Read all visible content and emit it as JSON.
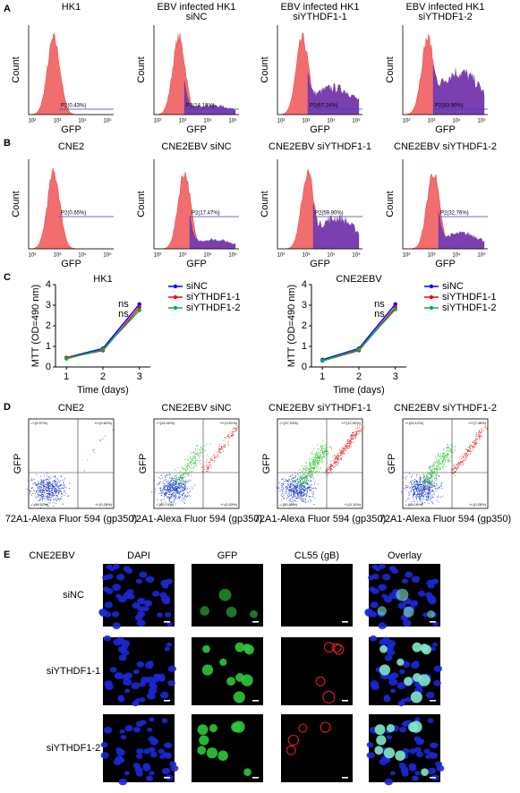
{
  "figure": {
    "panel_labels": [
      "A",
      "B",
      "C",
      "D",
      "E"
    ],
    "hist_axis": {
      "x_label": "GFP",
      "y_label": "Count",
      "x_ticks": [
        "10²",
        "10³",
        "10⁴",
        "10⁵"
      ]
    },
    "A": [
      {
        "title": [
          "HK1"
        ],
        "gate": "P2(0.43%)"
      },
      {
        "title": [
          "EBV infected HK1",
          "siNC"
        ],
        "gate": "P2(14.18%)"
      },
      {
        "title": [
          "EBV infected HK1",
          "siYTHDF1-1"
        ],
        "gate": "P2(67.24%)"
      },
      {
        "title": [
          "EBV infected HK1",
          "siYTHDF1-2"
        ],
        "gate": "P2(83.90%)"
      }
    ],
    "B": [
      {
        "title": [
          "CNE2"
        ],
        "gate": "P2(0.65%)"
      },
      {
        "title": [
          "CNE2EBV siNC"
        ],
        "gate": "P2(17.47%)"
      },
      {
        "title": [
          "CNE2EBV siYTHDF1-1"
        ],
        "gate": "P2(59.90%)"
      },
      {
        "title": [
          "CNE2EBV siYTHDF1-2"
        ],
        "gate": "P2(32.76%)"
      }
    ],
    "scatter_axis": {
      "x_label": "72A1-Alexa Fluor 594 (gp350)",
      "y_label": "GFP"
    },
    "D": [
      {
        "title": "CNE2",
        "quadrants": [
          "-/+(0.57%)",
          "+/+(0.62%)",
          "-/-(98.52%)",
          "+/-(0.28%)"
        ]
      },
      {
        "title": "CNE2EBV siNC",
        "quadrants": [
          "-/+(15.40%)",
          "+/+(3.51%)",
          "-/-(80.74%)",
          "+/-(0.33%)"
        ]
      },
      {
        "title": "CNE2EBV siYTHDF1-1",
        "quadrants": [
          "-/+(37.24%)",
          "+/+(12.50%)",
          "-/-(50.15%)",
          "+/-(0.11%)"
        ]
      },
      {
        "title": "CNE2EBV siYTHDF1-2",
        "quadrants": [
          "-/+(24.12%)",
          "+/+(7.46%)",
          "-/-(68.16%)",
          "+/-(0.26%)"
        ]
      }
    ],
    "E": {
      "corner": "CNE2EBV",
      "columns": [
        "DAPI",
        "GFP",
        "CL55 (gB)",
        "Overlay"
      ],
      "rows": [
        "siNC",
        "siYTHDF1-1",
        "siYTHDF1-2"
      ]
    }
  },
  "chart_data": [
    {
      "type": "line",
      "title": "HK1",
      "x_label": "Time (days)",
      "y_label": "MTT (OD=490 nm)",
      "x": [
        1,
        2,
        3
      ],
      "xlim": [
        0.7,
        3.3
      ],
      "xticks": [
        1,
        2,
        3
      ],
      "ylim": [
        0,
        4
      ],
      "yticks": [
        0,
        1,
        2,
        3,
        4
      ],
      "series": [
        {
          "name": "siNC",
          "color": "#0000ff",
          "values": [
            0.45,
            0.9,
            3.05
          ]
        },
        {
          "name": "siYTHDF1-1",
          "color": "#ff0000",
          "values": [
            0.45,
            0.8,
            2.9
          ]
        },
        {
          "name": "siYTHDF1-2",
          "color": "#00b050",
          "values": [
            0.4,
            0.85,
            2.75
          ]
        }
      ],
      "annotations": [
        {
          "text": "ns",
          "color": "#e00000"
        },
        {
          "text": "ns",
          "color": "#00a000"
        }
      ]
    },
    {
      "type": "line",
      "title": "CNE2EBV",
      "x_label": "Time (days)",
      "y_label": "MTT (OD=490 nm)",
      "x": [
        1,
        2,
        3
      ],
      "xlim": [
        0.7,
        3.3
      ],
      "xticks": [
        1,
        2,
        3
      ],
      "ylim": [
        0,
        4
      ],
      "yticks": [
        0,
        1,
        2,
        3,
        4
      ],
      "series": [
        {
          "name": "siNC",
          "color": "#0000ff",
          "values": [
            0.35,
            0.9,
            3.05
          ]
        },
        {
          "name": "siYTHDF1-1",
          "color": "#ff0000",
          "values": [
            0.3,
            0.8,
            2.9
          ]
        },
        {
          "name": "siYTHDF1-2",
          "color": "#00b050",
          "values": [
            0.3,
            0.85,
            2.8
          ]
        }
      ],
      "annotations": [
        {
          "text": "ns",
          "color": "#e00000"
        },
        {
          "text": "ns",
          "color": "#00a000"
        }
      ]
    }
  ]
}
